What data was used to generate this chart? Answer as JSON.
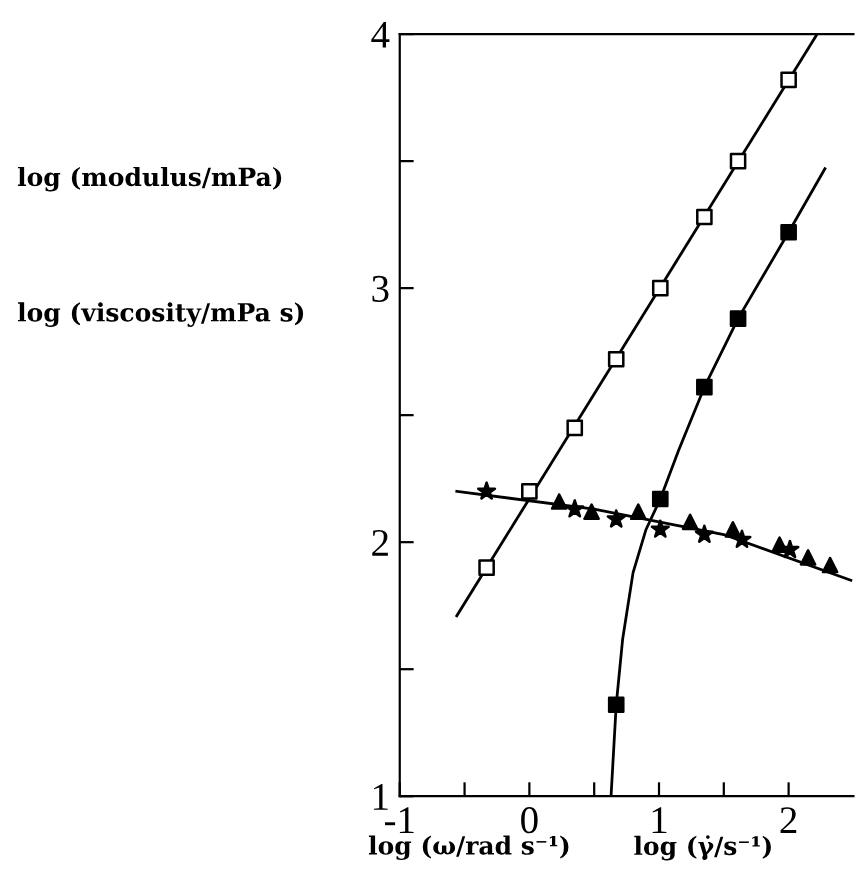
{
  "chart_data": {
    "type": "scatter",
    "xlabel": "log (ω/rad s⁻¹)",
    "annotations": [
      "log (γ̇/s⁻¹)",
      "log (modulus/mPa)",
      "log (viscosity/mPa s)"
    ],
    "xlim": [
      -1,
      2.5
    ],
    "ylim": [
      1,
      4
    ],
    "xticks": [
      -1,
      {
        "value": -0.5,
        "label": null
      },
      0,
      {
        "value": 0.5,
        "label": null
      },
      1,
      {
        "value": 1.5,
        "label": null
      },
      2
    ],
    "yticks": [
      1,
      {
        "value": 1.5,
        "label": null
      },
      2,
      {
        "value": 2.5,
        "label": null
      },
      3,
      {
        "value": 3.5,
        "label": null
      },
      4
    ],
    "grid": false,
    "legend": false,
    "series": [
      {
        "type": "line",
        "marker": "none",
        "color": "#000000",
        "x": [
          -0.56,
          2.22
        ],
        "values": [
          1.71,
          4.0
        ]
      },
      {
        "type": "line",
        "marker": "none",
        "color": "#000000",
        "x": [
          0.63,
          0.67,
          0.72,
          0.8,
          0.9,
          1.01,
          1.15,
          1.35,
          1.61,
          2.0,
          2.28
        ],
        "values": [
          1.0,
          1.36,
          1.62,
          1.88,
          2.05,
          2.17,
          2.36,
          2.61,
          2.88,
          3.22,
          3.47
        ]
      },
      {
        "type": "line",
        "marker": "none",
        "color": "#000000",
        "x": [
          -0.56,
          0.5,
          1.5,
          2.48
        ],
        "values": [
          2.2,
          2.13,
          2.03,
          1.85
        ]
      },
      {
        "marker": "square",
        "color": "#ffffff",
        "x": [
          -0.33,
          0,
          0.35,
          0.67,
          1.01,
          1.35,
          1.61,
          2.0
        ],
        "values": [
          1.9,
          2.2,
          2.45,
          2.72,
          3.0,
          3.28,
          3.5,
          3.82
        ]
      },
      {
        "marker": "square",
        "color": "#000000",
        "x": [
          0.67,
          1.01,
          1.35,
          1.61,
          2.0
        ],
        "values": [
          1.36,
          2.17,
          2.61,
          2.88,
          3.22
        ]
      },
      {
        "marker": "triangle",
        "color": "#000000",
        "x": [
          0.23,
          0.48,
          0.84,
          1.24,
          1.57,
          1.93,
          2.15,
          2.32
        ],
        "values": [
          2.16,
          2.12,
          2.12,
          2.08,
          2.05,
          1.99,
          1.94,
          1.91
        ]
      },
      {
        "marker": "star",
        "color": "#000000",
        "x": [
          -0.33,
          0.35,
          0.67,
          1.01,
          1.35,
          1.64,
          2.01
        ],
        "values": [
          2.2,
          2.13,
          2.09,
          2.05,
          2.03,
          2.01,
          1.97
        ]
      }
    ]
  }
}
